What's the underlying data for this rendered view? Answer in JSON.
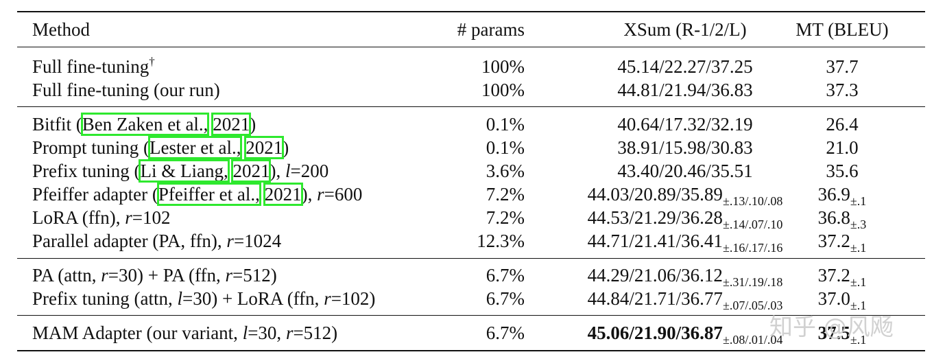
{
  "header": {
    "method": "Method",
    "params": "# params",
    "xsum": "XSum (R-1/2/L)",
    "mt": "MT (BLEU)"
  },
  "rows": [
    {
      "method": "Full fine-tuning",
      "sup": "†",
      "params": "100%",
      "xsum": "45.14/22.27/37.25",
      "mt": "37.7"
    },
    {
      "method": "Full fine-tuning (our run)",
      "params": "100%",
      "xsum": "44.81/21.94/36.83",
      "mt": "37.3"
    },
    {
      "pre": "Bitfit (",
      "cite_a": "Ben Zaken et al.,",
      "cite_b": "2021",
      "post": ")",
      "params": "0.1%",
      "xsum": "40.64/17.32/32.19",
      "mt": "26.4"
    },
    {
      "pre": "Prompt tuning (",
      "cite_a": "Lester et al.,",
      "cite_b": "2021",
      "post": ")",
      "params": "0.1%",
      "xsum": "38.91/15.98/30.83",
      "mt": "21.0"
    },
    {
      "pre": "Prefix tuning (",
      "cite_a": "Li & Liang,",
      "cite_b": "2021",
      "post": "), ",
      "var": "l",
      "val": "=200",
      "params": "3.6%",
      "xsum": "43.40/20.46/35.51",
      "mt": "35.6"
    },
    {
      "pre": "Pfeiffer adapter (",
      "cite_a": "Pfeiffer et al.,",
      "cite_b": "2021",
      "post": "), ",
      "var": "r",
      "val": "=600",
      "params": "7.2%",
      "xsum": "44.03/20.89/35.89",
      "xsum_pm": "±.13/.10/.08",
      "mt": "36.9",
      "mt_pm": "±.1"
    },
    {
      "pre": "LoRA (ffn), ",
      "var": "r",
      "val": "=102",
      "params": "7.2%",
      "xsum": "44.53/21.29/36.28",
      "xsum_pm": "±.14/.07/.10",
      "mt": "36.8",
      "mt_pm": "±.3"
    },
    {
      "pre": "Parallel adapter (PA, ffn), ",
      "var": "r",
      "val": "=1024",
      "params": "12.3%",
      "xsum": "44.71/21.41/36.41",
      "xsum_pm": "±.16/.17/.16",
      "mt": "37.2",
      "mt_pm": "±.1"
    },
    {
      "a": "PA (attn, ",
      "v1": "r",
      "b": "=30) + PA (ffn, ",
      "v2": "r",
      "c": "=512)",
      "params": "6.7%",
      "xsum": "44.29/21.06/36.12",
      "xsum_pm": "±.31/.19/.18",
      "mt": "37.2",
      "mt_pm": "±.1"
    },
    {
      "a": "Prefix tuning (attn, ",
      "v1": "l",
      "b": "=30) + LoRA (ffn, ",
      "v2": "r",
      "c": "=102)",
      "params": "6.7%",
      "xsum": "44.84/21.71/36.77",
      "xsum_pm": "±.07/.05/.03",
      "mt": "37.0",
      "mt_pm": "±.1"
    },
    {
      "a": "MAM Adapter (our variant, ",
      "v1": "l",
      "b": "=30, ",
      "v2": "r",
      "c": "=512)",
      "params": "6.7%",
      "xsum": "45.06/21.90/36.87",
      "xsum_pm": "±.08/.01/.04",
      "mt": "37.5",
      "mt_pm": "±.1"
    }
  ],
  "watermark": "知乎 @风飏"
}
